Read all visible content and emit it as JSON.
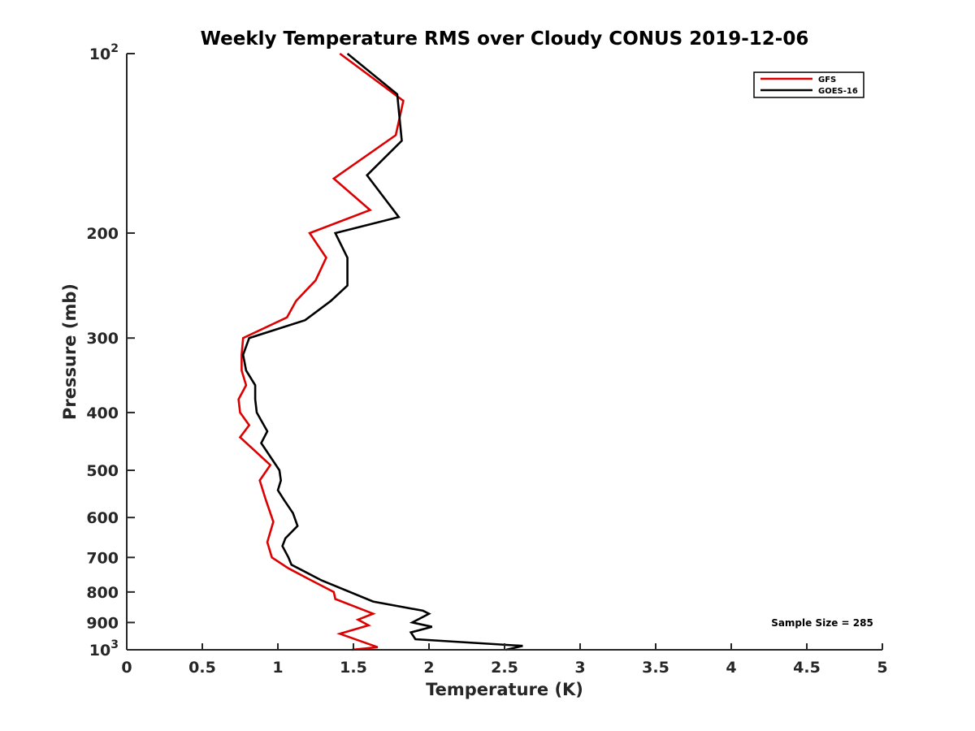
{
  "chart_data": {
    "type": "line",
    "title": "Weekly Temperature RMS over Cloudy CONUS 2019-12-06",
    "xlabel": "Temperature (K)",
    "ylabel": "Pressure (mb)",
    "xlim": [
      0,
      5
    ],
    "ylim": [
      100,
      1000
    ],
    "y_scale": "log",
    "y_reversed": true,
    "x_ticks": [
      "0",
      "0.5",
      "1",
      "1.5",
      "2",
      "2.5",
      "3",
      "3.5",
      "4",
      "4.5",
      "5"
    ],
    "y_ticks": [
      {
        "value": 100,
        "base": "10",
        "exp": "2"
      },
      {
        "value": 200,
        "label": "200"
      },
      {
        "value": 300,
        "label": "300"
      },
      {
        "value": 400,
        "label": "400"
      },
      {
        "value": 500,
        "label": "500"
      },
      {
        "value": 600,
        "label": "600"
      },
      {
        "value": 700,
        "label": "700"
      },
      {
        "value": 800,
        "label": "800"
      },
      {
        "value": 900,
        "label": "900"
      },
      {
        "value": 1000,
        "base": "10",
        "exp": "3"
      }
    ],
    "legend_position": "top-right",
    "grid": false,
    "annotation": "Sample Size = 285",
    "series": [
      {
        "name": "GFS",
        "color": "#dd0000",
        "points": [
          [
            1.41,
            100
          ],
          [
            1.83,
            120
          ],
          [
            1.78,
            137
          ],
          [
            1.37,
            162
          ],
          [
            1.61,
            183
          ],
          [
            1.21,
            200
          ],
          [
            1.32,
            220
          ],
          [
            1.25,
            240
          ],
          [
            1.12,
            260
          ],
          [
            1.06,
            277
          ],
          [
            0.77,
            300
          ],
          [
            0.76,
            320
          ],
          [
            0.76,
            340
          ],
          [
            0.79,
            360
          ],
          [
            0.74,
            380
          ],
          [
            0.75,
            400
          ],
          [
            0.81,
            420
          ],
          [
            0.75,
            440
          ],
          [
            0.95,
            490
          ],
          [
            0.88,
            520
          ],
          [
            0.92,
            560
          ],
          [
            0.97,
            610
          ],
          [
            0.93,
            660
          ],
          [
            0.96,
            700
          ],
          [
            1.07,
            730
          ],
          [
            1.2,
            760
          ],
          [
            1.37,
            800
          ],
          [
            1.38,
            822
          ],
          [
            1.63,
            870
          ],
          [
            1.53,
            890
          ],
          [
            1.6,
            910
          ],
          [
            1.41,
            940
          ],
          [
            1.66,
            990
          ],
          [
            1.49,
            1000
          ]
        ]
      },
      {
        "name": "GOES-16",
        "color": "#000000",
        "points": [
          [
            1.46,
            100
          ],
          [
            1.79,
            117
          ],
          [
            1.82,
            140
          ],
          [
            1.59,
            160
          ],
          [
            1.8,
            188
          ],
          [
            1.38,
            200
          ],
          [
            1.46,
            220
          ],
          [
            1.46,
            245
          ],
          [
            1.35,
            260
          ],
          [
            1.18,
            280
          ],
          [
            0.81,
            300
          ],
          [
            0.77,
            320
          ],
          [
            0.79,
            340
          ],
          [
            0.85,
            360
          ],
          [
            0.85,
            380
          ],
          [
            0.86,
            400
          ],
          [
            0.93,
            430
          ],
          [
            0.89,
            450
          ],
          [
            1.01,
            500
          ],
          [
            1.02,
            520
          ],
          [
            1.0,
            540
          ],
          [
            1.04,
            560
          ],
          [
            1.1,
            590
          ],
          [
            1.13,
            620
          ],
          [
            1.05,
            650
          ],
          [
            1.03,
            670
          ],
          [
            1.07,
            700
          ],
          [
            1.09,
            720
          ],
          [
            1.29,
            765
          ],
          [
            1.63,
            830
          ],
          [
            1.96,
            860
          ],
          [
            2.0,
            870
          ],
          [
            1.89,
            900
          ],
          [
            2.02,
            915
          ],
          [
            1.88,
            935
          ],
          [
            1.91,
            960
          ],
          [
            2.62,
            985
          ],
          [
            2.51,
            1000
          ]
        ]
      }
    ]
  }
}
